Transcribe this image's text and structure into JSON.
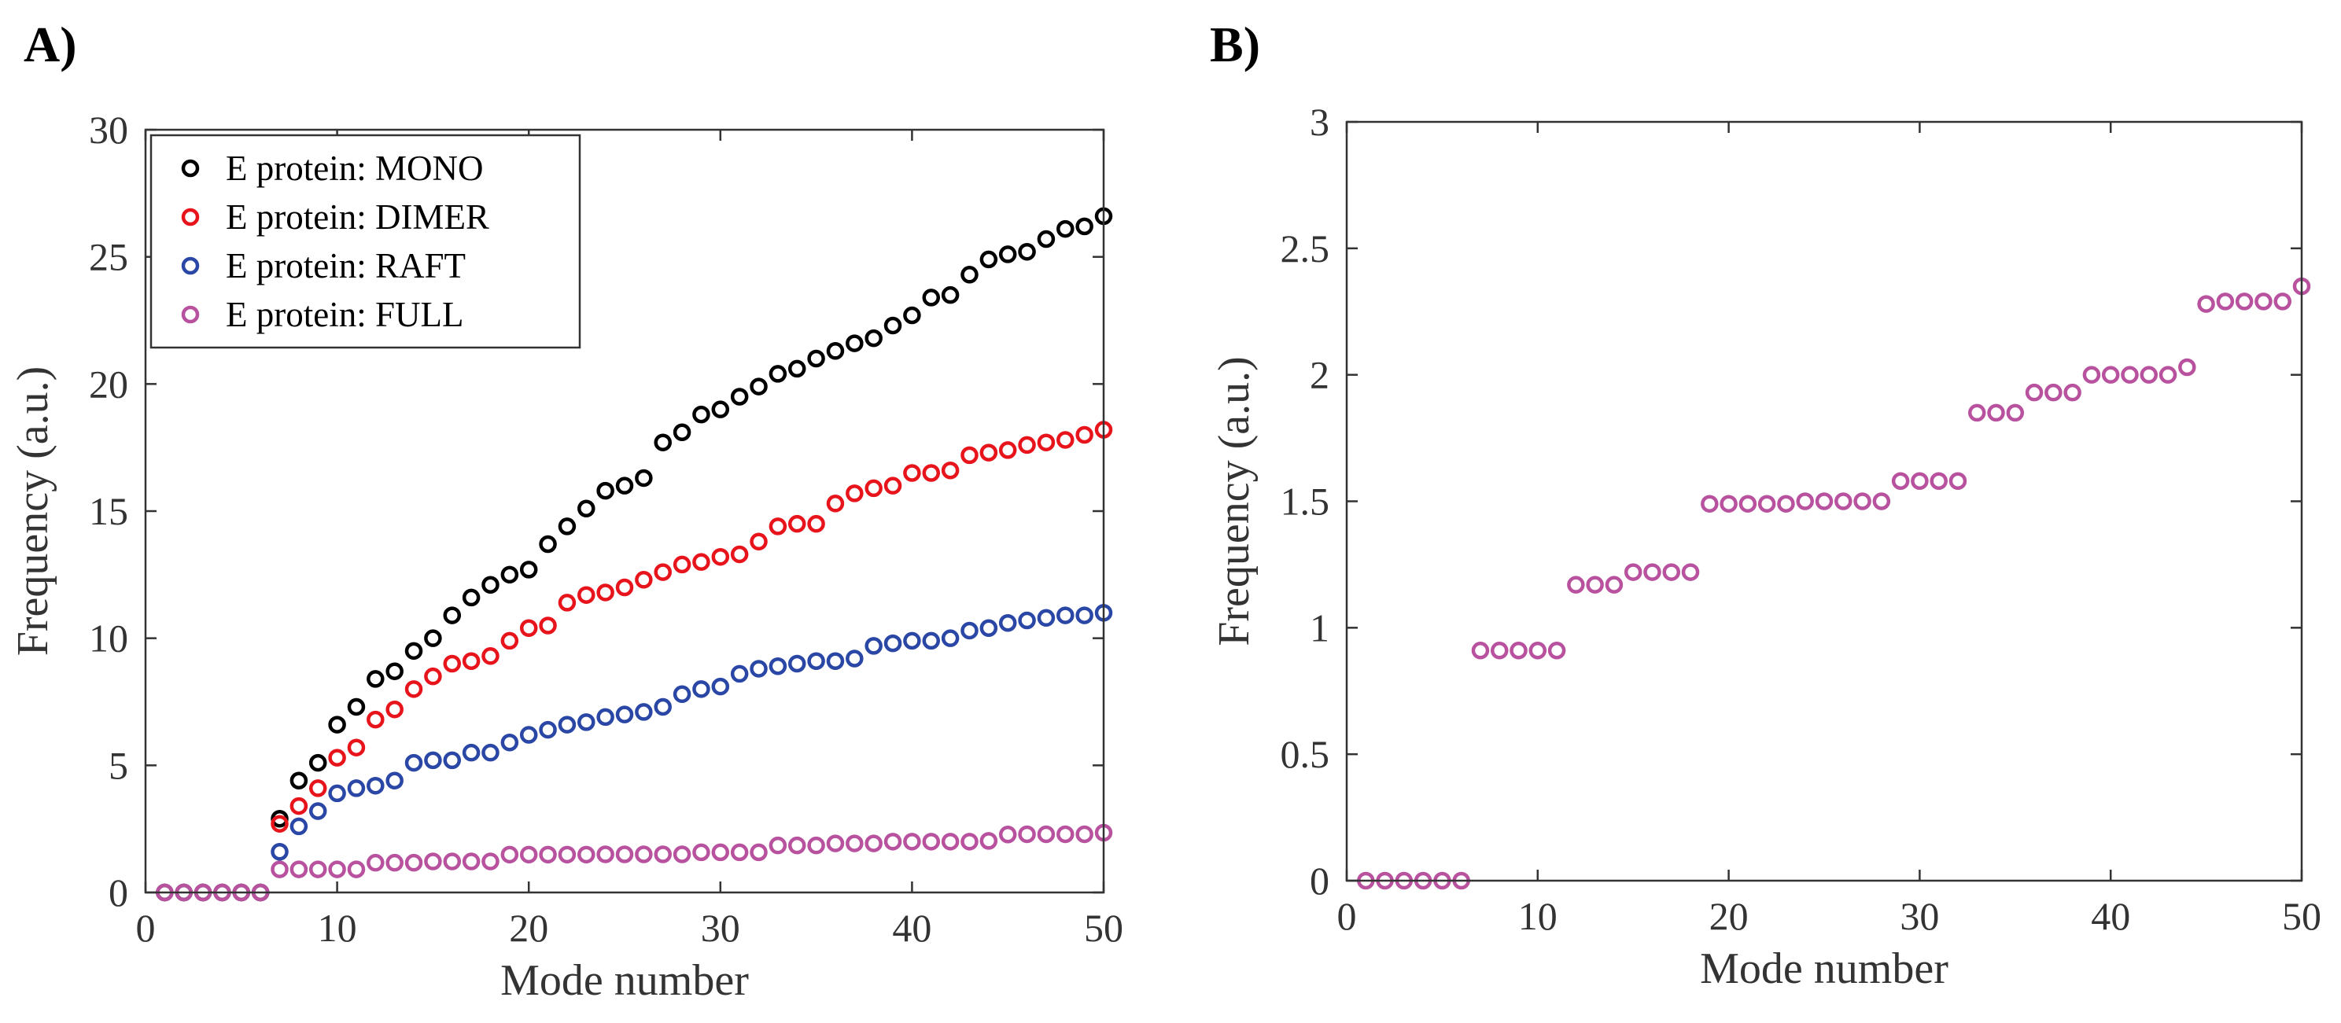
{
  "chart_data": [
    {
      "panel_label": "A)",
      "type": "scatter",
      "xlabel": "Mode number",
      "ylabel": "Frequency (a.u.)",
      "xlim": [
        0,
        50
      ],
      "ylim": [
        0,
        30
      ],
      "xticks": [
        0,
        10,
        20,
        30,
        40,
        50
      ],
      "yticks": [
        0,
        5,
        10,
        15,
        20,
        25,
        30
      ],
      "grid": false,
      "legend_position": "top-left",
      "marker": "open-circle",
      "series": [
        {
          "name": "E protein: MONO",
          "color": "#000000",
          "x": [
            1,
            2,
            3,
            4,
            5,
            6,
            7,
            8,
            9,
            10,
            11,
            12,
            13,
            14,
            15,
            16,
            17,
            18,
            19,
            20,
            21,
            22,
            23,
            24,
            25,
            26,
            27,
            28,
            29,
            30,
            31,
            32,
            33,
            34,
            35,
            36,
            37,
            38,
            39,
            40,
            41,
            42,
            43,
            44,
            45,
            46,
            47,
            48,
            49,
            50
          ],
          "y": [
            0,
            0,
            0,
            0,
            0,
            0,
            2.9,
            4.4,
            5.1,
            6.6,
            7.3,
            8.4,
            8.7,
            9.5,
            10.0,
            10.9,
            11.6,
            12.1,
            12.5,
            12.7,
            13.7,
            14.4,
            15.1,
            15.8,
            16.0,
            16.3,
            17.7,
            18.1,
            18.8,
            19.0,
            19.5,
            19.9,
            20.4,
            20.6,
            21.0,
            21.3,
            21.6,
            21.8,
            22.3,
            22.7,
            23.4,
            23.5,
            24.3,
            24.9,
            25.1,
            25.2,
            25.7,
            26.1,
            26.2,
            26.6
          ]
        },
        {
          "name": "E protein: DIMER",
          "color": "#e8141c",
          "x": [
            1,
            2,
            3,
            4,
            5,
            6,
            7,
            8,
            9,
            10,
            11,
            12,
            13,
            14,
            15,
            16,
            17,
            18,
            19,
            20,
            21,
            22,
            23,
            24,
            25,
            26,
            27,
            28,
            29,
            30,
            31,
            32,
            33,
            34,
            35,
            36,
            37,
            38,
            39,
            40,
            41,
            42,
            43,
            44,
            45,
            46,
            47,
            48,
            49,
            50
          ],
          "y": [
            0,
            0,
            0,
            0,
            0,
            0,
            2.7,
            3.4,
            4.1,
            5.3,
            5.7,
            6.8,
            7.2,
            8.0,
            8.5,
            9.0,
            9.1,
            9.3,
            9.9,
            10.4,
            10.5,
            11.4,
            11.7,
            11.8,
            12.0,
            12.3,
            12.6,
            12.9,
            13.0,
            13.2,
            13.3,
            13.8,
            14.4,
            14.5,
            14.5,
            15.3,
            15.7,
            15.9,
            16.0,
            16.5,
            16.5,
            16.6,
            17.2,
            17.3,
            17.4,
            17.6,
            17.7,
            17.8,
            18.0,
            18.2
          ]
        },
        {
          "name": "E protein: RAFT",
          "color": "#2a47a6",
          "x": [
            1,
            2,
            3,
            4,
            5,
            6,
            7,
            8,
            9,
            10,
            11,
            12,
            13,
            14,
            15,
            16,
            17,
            18,
            19,
            20,
            21,
            22,
            23,
            24,
            25,
            26,
            27,
            28,
            29,
            30,
            31,
            32,
            33,
            34,
            35,
            36,
            37,
            38,
            39,
            40,
            41,
            42,
            43,
            44,
            45,
            46,
            47,
            48,
            49,
            50
          ],
          "y": [
            0,
            0,
            0,
            0,
            0,
            0,
            1.6,
            2.6,
            3.2,
            3.9,
            4.1,
            4.2,
            4.4,
            5.1,
            5.2,
            5.2,
            5.5,
            5.5,
            5.9,
            6.2,
            6.4,
            6.6,
            6.7,
            6.9,
            7.0,
            7.1,
            7.3,
            7.8,
            8.0,
            8.1,
            8.6,
            8.8,
            8.9,
            9.0,
            9.1,
            9.1,
            9.2,
            9.7,
            9.8,
            9.9,
            9.9,
            10.0,
            10.3,
            10.4,
            10.6,
            10.7,
            10.8,
            10.9,
            10.9,
            11.0
          ]
        },
        {
          "name": "E protein: FULL",
          "color": "#b8529f",
          "x": [
            1,
            2,
            3,
            4,
            5,
            6,
            7,
            8,
            9,
            10,
            11,
            12,
            13,
            14,
            15,
            16,
            17,
            18,
            19,
            20,
            21,
            22,
            23,
            24,
            25,
            26,
            27,
            28,
            29,
            30,
            31,
            32,
            33,
            34,
            35,
            36,
            37,
            38,
            39,
            40,
            41,
            42,
            43,
            44,
            45,
            46,
            47,
            48,
            49,
            50
          ],
          "y": [
            0,
            0,
            0,
            0,
            0,
            0,
            0.91,
            0.91,
            0.91,
            0.91,
            0.91,
            1.17,
            1.17,
            1.17,
            1.22,
            1.22,
            1.22,
            1.22,
            1.49,
            1.49,
            1.49,
            1.49,
            1.49,
            1.5,
            1.5,
            1.5,
            1.5,
            1.5,
            1.58,
            1.58,
            1.58,
            1.58,
            1.85,
            1.85,
            1.85,
            1.93,
            1.93,
            1.93,
            2.0,
            2.0,
            2.0,
            2.0,
            2.0,
            2.03,
            2.28,
            2.29,
            2.29,
            2.29,
            2.29,
            2.35
          ]
        }
      ]
    },
    {
      "panel_label": "B)",
      "type": "scatter",
      "xlabel": "Mode number",
      "ylabel": "Frequency (a.u.)",
      "xlim": [
        0,
        50
      ],
      "ylim": [
        0,
        3
      ],
      "xticks": [
        0,
        10,
        20,
        30,
        40,
        50
      ],
      "yticks": [
        0,
        0.5,
        1,
        1.5,
        2,
        2.5,
        3
      ],
      "grid": false,
      "marker": "open-circle",
      "series": [
        {
          "color": "#b8529f",
          "x": [
            1,
            2,
            3,
            4,
            5,
            6,
            7,
            8,
            9,
            10,
            11,
            12,
            13,
            14,
            15,
            16,
            17,
            18,
            19,
            20,
            21,
            22,
            23,
            24,
            25,
            26,
            27,
            28,
            29,
            30,
            31,
            32,
            33,
            34,
            35,
            36,
            37,
            38,
            39,
            40,
            41,
            42,
            43,
            44,
            45,
            46,
            47,
            48,
            49,
            50
          ],
          "y": [
            0,
            0,
            0,
            0,
            0,
            0,
            0.91,
            0.91,
            0.91,
            0.91,
            0.91,
            1.17,
            1.17,
            1.17,
            1.22,
            1.22,
            1.22,
            1.22,
            1.49,
            1.49,
            1.49,
            1.49,
            1.49,
            1.5,
            1.5,
            1.5,
            1.5,
            1.5,
            1.58,
            1.58,
            1.58,
            1.58,
            1.85,
            1.85,
            1.85,
            1.93,
            1.93,
            1.93,
            2.0,
            2.0,
            2.0,
            2.0,
            2.0,
            2.03,
            2.28,
            2.29,
            2.29,
            2.29,
            2.29,
            2.35
          ]
        }
      ]
    }
  ]
}
